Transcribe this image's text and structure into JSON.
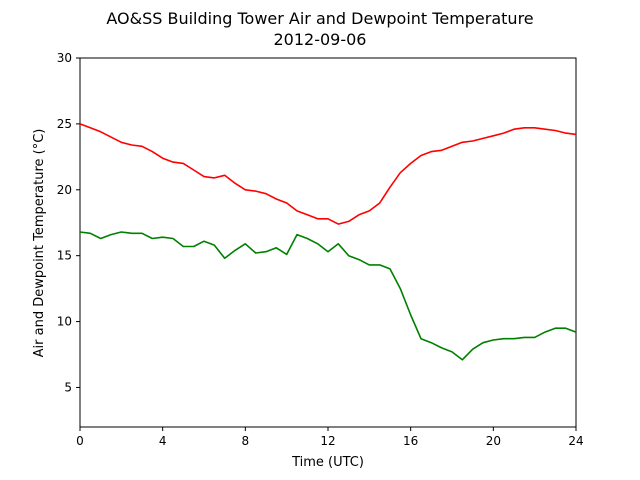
{
  "chart_data": {
    "type": "line",
    "title": "AO&SS Building Tower Air and Dewpoint Temperature",
    "subtitle": "2012-09-06",
    "xlabel": "Time (UTC)",
    "ylabel": "Air and Dewpoint Temperature (°C)",
    "xlim": [
      0,
      24
    ],
    "ylim": [
      2,
      30
    ],
    "xticks": [
      0,
      4,
      8,
      12,
      16,
      20,
      24
    ],
    "yticks": [
      5,
      10,
      15,
      20,
      25,
      30
    ],
    "grid": false,
    "legend": "none",
    "series": [
      {
        "color": "#ff0000",
        "x": [
          0,
          0.5,
          1,
          1.5,
          2,
          2.5,
          3,
          3.5,
          4,
          4.5,
          5,
          5.5,
          6,
          6.5,
          7,
          7.5,
          8,
          8.5,
          9,
          9.5,
          10,
          10.5,
          11,
          11.5,
          12,
          12.5,
          13,
          13.5,
          14,
          14.5,
          15,
          15.5,
          16,
          16.5,
          17,
          17.5,
          18,
          18.5,
          19,
          19.5,
          20,
          20.5,
          21,
          21.5,
          22,
          22.5,
          23,
          23.5,
          24
        ],
        "y": [
          25.0,
          24.7,
          24.4,
          24.0,
          23.6,
          23.4,
          23.3,
          22.9,
          22.4,
          22.1,
          22.0,
          21.5,
          21.0,
          20.9,
          21.1,
          20.5,
          20.0,
          19.9,
          19.7,
          19.3,
          19.0,
          18.4,
          18.1,
          17.8,
          17.8,
          17.4,
          17.6,
          18.1,
          18.4,
          19.0,
          20.2,
          21.3,
          22.0,
          22.6,
          22.9,
          23.0,
          23.3,
          23.6,
          23.7,
          23.9,
          24.1,
          24.3,
          24.6,
          24.7,
          24.7,
          24.6,
          24.5,
          24.3,
          24.2
        ]
      },
      {
        "color": "#008000",
        "x": [
          0,
          0.5,
          1,
          1.5,
          2,
          2.5,
          3,
          3.5,
          4,
          4.5,
          5,
          5.5,
          6,
          6.5,
          7,
          7.5,
          8,
          8.5,
          9,
          9.5,
          10,
          10.5,
          11,
          11.5,
          12,
          12.5,
          13,
          13.5,
          14,
          14.5,
          15,
          15.5,
          16,
          16.5,
          17,
          17.5,
          18,
          18.5,
          19,
          19.5,
          20,
          20.5,
          21,
          21.5,
          22,
          22.5,
          23,
          23.5,
          24
        ],
        "y": [
          16.8,
          16.7,
          16.3,
          16.6,
          16.8,
          16.7,
          16.7,
          16.3,
          16.4,
          16.3,
          15.7,
          15.7,
          16.1,
          15.8,
          14.8,
          15.4,
          15.9,
          15.2,
          15.3,
          15.6,
          15.1,
          16.6,
          16.3,
          15.9,
          15.3,
          15.9,
          15.0,
          14.7,
          14.3,
          14.3,
          14.0,
          12.5,
          10.5,
          8.7,
          8.4,
          8.0,
          7.7,
          7.1,
          7.9,
          8.4,
          8.6,
          8.7,
          8.7,
          8.8,
          8.8,
          9.2,
          9.5,
          9.5,
          9.2
        ]
      }
    ]
  }
}
